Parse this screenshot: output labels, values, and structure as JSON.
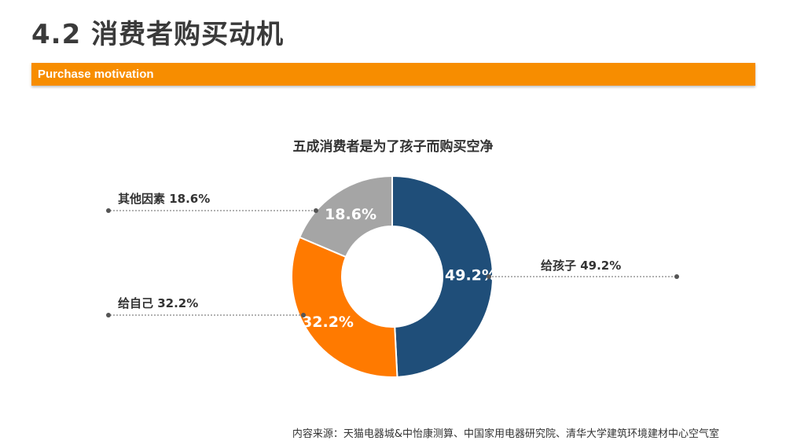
{
  "header": {
    "title": "4.2 消费者购买动机",
    "banner_label": "Purchase motivation"
  },
  "colors": {
    "banner": "#f78d00",
    "slice_children": "#1f4e79",
    "slice_self": "#ff7a00",
    "slice_other": "#a5a5a5"
  },
  "chart_data": {
    "type": "pie",
    "variant": "donut",
    "title": "五成消费者是为了孩子而购买空净",
    "unit": "%",
    "slices": [
      {
        "label": "给孩子",
        "value": 49.2,
        "display": "49.2%",
        "callout": "给孩子  49.2%",
        "color": "#1f4e79"
      },
      {
        "label": "给自己",
        "value": 32.2,
        "display": "32.2%",
        "callout": "给自己  32.2%",
        "color": "#ff7a00"
      },
      {
        "label": "其他因素",
        "value": 18.6,
        "display": "18.6%",
        "callout": "其他因素  18.6%",
        "color": "#a5a5a5"
      }
    ]
  },
  "footer": {
    "source": "内容来源：天猫电器城&中怡康测算、中国家用电器研究院、清华大学建筑环境建材中心空气室"
  }
}
